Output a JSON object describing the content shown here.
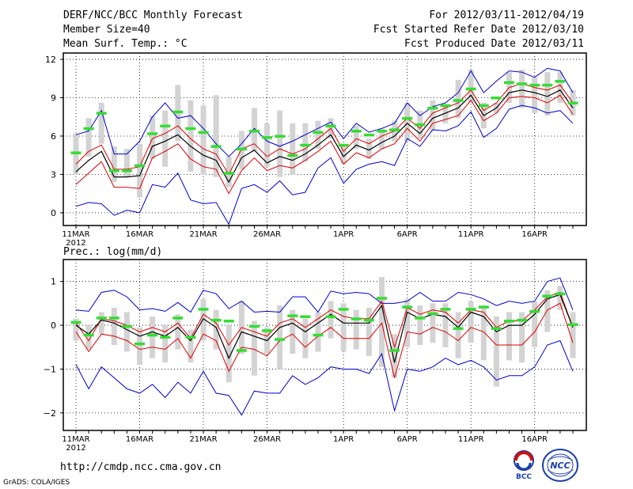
{
  "header": {
    "title": "DERF/NCC/BCC Monthly Forecast",
    "member_size": "Member Size=40",
    "variable": "Mean Surf. Temp.: °C",
    "period": "For 2012/03/11-2012/04/19",
    "refer_date": "Fcst Started Refer Date 2012/03/10",
    "produced_date": "Fcst Produced Date 2012/03/11"
  },
  "footer": {
    "url": "http://cmdp.ncc.cma.gov.cn",
    "credit": "GrADS: COLA/IGES",
    "logo_bcc": "BCC",
    "logo_ncc": "NCC"
  },
  "colors": {
    "max_min": "#0000cc",
    "spread": "#dd0000",
    "mean": "#000000",
    "box": "#d3d3d3",
    "marker": "#33dd33"
  },
  "chart_data": [
    {
      "type": "line",
      "title": "Mean Surf. Temp.: °C",
      "x": [
        "11MAR",
        "12MAR",
        "13MAR",
        "14MAR",
        "15MAR",
        "16MAR",
        "17MAR",
        "18MAR",
        "19MAR",
        "20MAR",
        "21MAR",
        "22MAR",
        "23MAR",
        "24MAR",
        "25MAR",
        "26MAR",
        "27MAR",
        "28MAR",
        "29MAR",
        "30MAR",
        "31MAR",
        "1APR",
        "2APR",
        "3APR",
        "4APR",
        "5APR",
        "6APR",
        "7APR",
        "8APR",
        "9APR",
        "10APR",
        "11APR",
        "12APR",
        "13APR",
        "14APR",
        "15APR",
        "16APR",
        "17APR",
        "18APR",
        "19APR"
      ],
      "tick_labels": [
        "11MAR",
        "16MAR",
        "21MAR",
        "26MAR",
        "1APR",
        "6APR",
        "11APR",
        "16APR"
      ],
      "year_label": "2012",
      "yticks": [
        0,
        3,
        6,
        9,
        12
      ],
      "ylim": [
        -1,
        12.5
      ],
      "series": [
        {
          "name": "max",
          "values": [
            6.1,
            6.4,
            8.0,
            4.6,
            4.6,
            5.6,
            7.5,
            8.6,
            7.4,
            7.6,
            6.6,
            5.4,
            4.4,
            5.4,
            6.6,
            5.6,
            5.2,
            5.6,
            6.1,
            6.6,
            7.1,
            5.8,
            7.0,
            6.3,
            6.6,
            7.0,
            8.6,
            7.6,
            8.3,
            8.6,
            9.4,
            11.1,
            9.4,
            10.3,
            11.1,
            11.0,
            10.6,
            11.3,
            11.1,
            9.4
          ]
        },
        {
          "name": "upper",
          "values": [
            3.8,
            4.8,
            5.3,
            3.4,
            3.4,
            3.6,
            5.8,
            6.2,
            6.8,
            5.8,
            5.0,
            4.6,
            3.0,
            5.0,
            5.4,
            4.4,
            5.0,
            4.6,
            5.0,
            5.8,
            6.6,
            4.8,
            5.8,
            5.4,
            6.0,
            6.4,
            7.4,
            6.6,
            7.8,
            8.2,
            8.6,
            9.6,
            8.0,
            8.6,
            9.8,
            10.1,
            9.8,
            9.6,
            10.0,
            8.6
          ]
        },
        {
          "name": "mean",
          "values": [
            3.2,
            4.1,
            4.8,
            2.8,
            2.8,
            2.9,
            5.2,
            5.6,
            6.1,
            5.2,
            4.5,
            4.1,
            2.4,
            4.3,
            4.9,
            3.9,
            4.4,
            4.1,
            4.6,
            5.3,
            6.1,
            4.4,
            5.3,
            4.9,
            5.5,
            6.0,
            7.0,
            6.2,
            7.4,
            7.8,
            8.2,
            9.2,
            7.6,
            8.2,
            9.4,
            9.6,
            9.4,
            9.1,
            9.6,
            8.2
          ]
        },
        {
          "name": "lower",
          "values": [
            2.2,
            3.1,
            4.0,
            2.0,
            2.0,
            1.9,
            4.3,
            4.8,
            5.4,
            4.2,
            3.6,
            3.4,
            1.5,
            3.3,
            4.3,
            3.3,
            3.7,
            3.5,
            4.1,
            4.8,
            5.6,
            3.8,
            4.7,
            4.3,
            5.0,
            5.4,
            6.6,
            5.6,
            7.0,
            7.3,
            7.6,
            8.8,
            7.2,
            7.8,
            9.0,
            9.1,
            9.0,
            8.6,
            9.2,
            7.7
          ]
        },
        {
          "name": "min",
          "values": [
            0.5,
            0.8,
            0.7,
            -0.2,
            0.2,
            0.0,
            2.2,
            2.0,
            3.1,
            1.0,
            0.7,
            0.8,
            -0.9,
            1.9,
            2.2,
            1.6,
            2.5,
            1.4,
            1.6,
            3.5,
            4.3,
            2.3,
            3.4,
            3.8,
            4.0,
            3.7,
            5.8,
            5.2,
            6.5,
            6.4,
            6.8,
            7.9,
            5.9,
            6.6,
            8.1,
            8.4,
            8.2,
            7.8,
            8.0,
            7.0
          ]
        },
        {
          "name": "box_top",
          "values": [
            6.2,
            7.4,
            8.6,
            5.2,
            5.0,
            5.4,
            7.6,
            8.0,
            10.0,
            8.8,
            8.4,
            9.2,
            4.4,
            6.4,
            8.2,
            7.0,
            8.0,
            7.0,
            7.0,
            7.2,
            7.4,
            5.4,
            6.8,
            5.8,
            6.6,
            7.2,
            8.6,
            8.0,
            8.8,
            8.4,
            10.4,
            11.2,
            8.6,
            8.6,
            11.0,
            11.2,
            10.6,
            11.0,
            11.0,
            9.6
          ]
        },
        {
          "name": "box_bottom",
          "values": [
            3.0,
            4.4,
            5.4,
            2.4,
            2.8,
            1.2,
            4.2,
            3.6,
            5.6,
            3.2,
            3.0,
            2.8,
            2.0,
            3.4,
            4.8,
            3.6,
            2.8,
            3.0,
            4.0,
            5.0,
            5.8,
            3.8,
            5.0,
            4.2,
            5.0,
            5.6,
            5.6,
            5.8,
            6.4,
            7.0,
            7.4,
            8.6,
            6.6,
            7.8,
            8.6,
            8.2,
            7.8,
            7.6,
            8.6,
            7.6
          ]
        },
        {
          "name": "marker",
          "values": [
            4.7,
            6.6,
            7.8,
            3.3,
            3.3,
            3.7,
            6.2,
            6.8,
            7.9,
            6.6,
            6.3,
            5.2,
            3.1,
            5.0,
            6.4,
            5.9,
            6.0,
            4.5,
            5.3,
            6.3,
            6.8,
            5.3,
            6.4,
            6.1,
            6.4,
            6.5,
            7.4,
            6.9,
            8.2,
            8.4,
            8.8,
            9.7,
            8.4,
            9.0,
            10.2,
            10.1,
            10.0,
            10.0,
            10.3,
            8.6
          ]
        }
      ]
    },
    {
      "type": "line",
      "title": "Prec.: log(mm/d)",
      "x": [
        "11MAR",
        "12MAR",
        "13MAR",
        "14MAR",
        "15MAR",
        "16MAR",
        "17MAR",
        "18MAR",
        "19MAR",
        "20MAR",
        "21MAR",
        "22MAR",
        "23MAR",
        "24MAR",
        "25MAR",
        "26MAR",
        "27MAR",
        "28MAR",
        "29MAR",
        "30MAR",
        "31MAR",
        "1APR",
        "2APR",
        "3APR",
        "4APR",
        "5APR",
        "6APR",
        "7APR",
        "8APR",
        "9APR",
        "10APR",
        "11APR",
        "12APR",
        "13APR",
        "14APR",
        "15APR",
        "16APR",
        "17APR",
        "18APR",
        "19APR"
      ],
      "tick_labels": [
        "11MAR",
        "16MAR",
        "21MAR",
        "26MAR",
        "1APR",
        "6APR",
        "11APR",
        "16APR"
      ],
      "year_label": "2012",
      "yticks": [
        -2,
        -1,
        0,
        1
      ],
      "ylim": [
        -2.4,
        1.5
      ],
      "series": [
        {
          "name": "max",
          "values": [
            0.35,
            0.32,
            0.75,
            0.8,
            0.65,
            0.35,
            0.38,
            0.32,
            0.52,
            0.3,
            0.8,
            0.72,
            0.38,
            0.55,
            0.3,
            0.32,
            0.3,
            0.65,
            0.65,
            0.3,
            0.78,
            0.72,
            0.75,
            0.72,
            0.5,
            0.5,
            0.55,
            0.75,
            0.55,
            0.55,
            0.75,
            0.7,
            0.6,
            0.45,
            0.55,
            0.5,
            0.55,
            1.0,
            1.08,
            0.35
          ]
        },
        {
          "name": "upper",
          "values": [
            0.05,
            -0.35,
            0.15,
            0.1,
            0.0,
            -0.15,
            -0.05,
            -0.15,
            0.05,
            -0.3,
            0.25,
            0.05,
            -0.45,
            -0.05,
            -0.15,
            -0.25,
            0.05,
            0.15,
            -0.05,
            0.15,
            0.35,
            0.2,
            0.15,
            0.15,
            0.55,
            -0.5,
            0.4,
            0.25,
            0.35,
            0.3,
            0.05,
            0.35,
            0.3,
            -0.05,
            0.1,
            0.1,
            0.35,
            0.65,
            0.75,
            -0.05
          ]
        },
        {
          "name": "mean",
          "values": [
            0.0,
            -0.2,
            0.12,
            0.05,
            -0.1,
            -0.25,
            -0.15,
            -0.25,
            -0.05,
            -0.35,
            0.15,
            -0.05,
            -0.75,
            -0.15,
            -0.25,
            -0.35,
            -0.05,
            0.05,
            -0.15,
            0.05,
            0.25,
            0.05,
            0.05,
            0.05,
            0.45,
            -0.85,
            0.3,
            0.15,
            0.25,
            0.2,
            -0.05,
            0.3,
            0.2,
            -0.15,
            0.0,
            0.0,
            0.25,
            0.6,
            0.7,
            -0.05
          ]
        },
        {
          "name": "lower",
          "values": [
            -0.15,
            -0.6,
            -0.2,
            -0.25,
            -0.35,
            -0.55,
            -0.5,
            -0.55,
            -0.3,
            -0.75,
            -0.2,
            -0.35,
            -1.05,
            -0.5,
            -0.55,
            -0.7,
            -0.35,
            -0.2,
            -0.5,
            -0.25,
            -0.05,
            -0.3,
            -0.3,
            -0.3,
            0.05,
            -1.2,
            -0.15,
            -0.2,
            -0.05,
            -0.15,
            -0.35,
            -0.05,
            -0.15,
            -0.45,
            -0.45,
            -0.45,
            -0.15,
            0.35,
            0.5,
            -0.4
          ]
        },
        {
          "name": "min",
          "values": [
            -0.9,
            -1.45,
            -0.95,
            -1.2,
            -1.45,
            -1.55,
            -1.35,
            -1.65,
            -1.3,
            -1.55,
            -1.05,
            -1.55,
            -1.6,
            -2.05,
            -1.5,
            -1.55,
            -1.55,
            -1.15,
            -1.35,
            -1.2,
            -0.95,
            -1.0,
            -1.0,
            -1.1,
            -0.65,
            -1.95,
            -1.0,
            -1.05,
            -0.95,
            -0.75,
            -0.9,
            -0.8,
            -0.95,
            -1.25,
            -1.15,
            -1.15,
            -0.95,
            -0.45,
            -0.35,
            -1.05
          ]
        },
        {
          "name": "box_top",
          "values": [
            0.15,
            0.0,
            0.3,
            0.4,
            0.3,
            -0.05,
            0.2,
            0.0,
            0.25,
            -0.1,
            0.6,
            0.35,
            0.0,
            0.55,
            0.1,
            -0.05,
            0.45,
            0.35,
            0.15,
            0.3,
            0.55,
            0.5,
            0.35,
            0.4,
            1.1,
            -0.2,
            0.6,
            0.45,
            0.5,
            0.5,
            0.3,
            0.55,
            0.45,
            0.2,
            0.3,
            0.3,
            0.55,
            0.8,
            0.9,
            0.3
          ]
        },
        {
          "name": "box_bottom",
          "values": [
            -0.35,
            -0.55,
            -0.2,
            -0.45,
            -0.6,
            -0.9,
            -0.75,
            -0.85,
            -0.55,
            -0.85,
            -0.35,
            -0.55,
            -1.3,
            -0.65,
            -1.15,
            -0.65,
            -1.0,
            -0.65,
            -0.75,
            -0.6,
            -0.3,
            -0.6,
            -0.55,
            -0.7,
            -0.95,
            -1.2,
            -0.5,
            -0.45,
            -0.4,
            -0.5,
            -0.75,
            -0.4,
            -0.8,
            -1.4,
            -0.8,
            -0.85,
            -0.5,
            -0.15,
            0.35,
            -0.75
          ]
        },
        {
          "name": "marker",
          "values": [
            0.07,
            -0.22,
            0.17,
            0.17,
            -0.02,
            -0.42,
            -0.22,
            -0.27,
            0.17,
            -0.27,
            0.37,
            0.12,
            0.1,
            -0.57,
            -0.02,
            -0.12,
            -0.32,
            0.22,
            0.2,
            -0.22,
            0.2,
            0.37,
            0.15,
            0.12,
            0.62,
            -0.57,
            0.42,
            0.17,
            0.27,
            0.37,
            -0.07,
            0.37,
            0.42,
            -0.07,
            0.1,
            0.12,
            0.32,
            0.67,
            0.72,
            0.02
          ]
        }
      ]
    }
  ]
}
